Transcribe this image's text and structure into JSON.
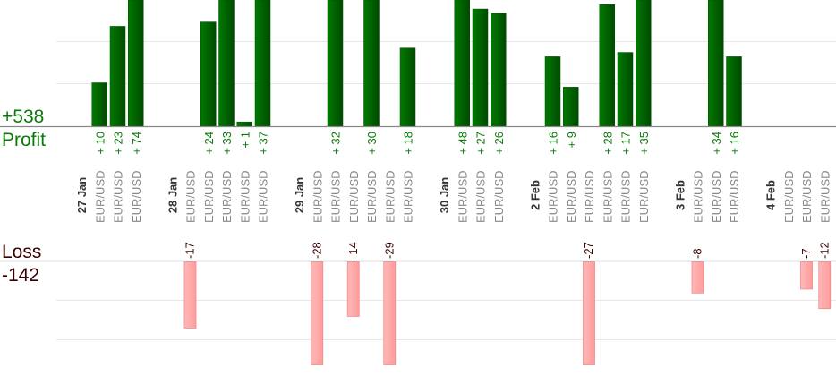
{
  "summary": {
    "profit_total": "+538",
    "profit_label": "Profit",
    "loss_label": "Loss",
    "loss_total": "-142"
  },
  "colors": {
    "profit": "#006400",
    "profit_text": "#0a7a0a",
    "loss_fill": "#ffaaaa",
    "loss_text": "#3a0000",
    "pair_text": "#888888"
  },
  "chart_data": {
    "type": "bar",
    "grid": true,
    "groups": [
      {
        "date": "27 Jan",
        "trades": [
          {
            "pair": "EUR/USD",
            "value": 10,
            "label": "+10"
          },
          {
            "pair": "EUR/USD",
            "value": 23,
            "label": "+23"
          },
          {
            "pair": "EUR/USD",
            "value": 74,
            "label": "+74"
          }
        ]
      },
      {
        "date": "28 Jan",
        "trades": [
          {
            "pair": "EUR/USD",
            "value": -17,
            "label": "-17"
          },
          {
            "pair": "EUR/USD",
            "value": 24,
            "label": "+24"
          },
          {
            "pair": "EUR/USD",
            "value": 33,
            "label": "+33"
          },
          {
            "pair": "EUR/USD",
            "value": 1,
            "label": "+1"
          },
          {
            "pair": "EUR/USD",
            "value": 37,
            "label": "+37"
          }
        ]
      },
      {
        "date": "29 Jan",
        "trades": [
          {
            "pair": "EUR/USD",
            "value": -28,
            "label": "-28"
          },
          {
            "pair": "EUR/USD",
            "value": 32,
            "label": "+32"
          },
          {
            "pair": "EUR/USD",
            "value": -14,
            "label": "-14"
          },
          {
            "pair": "EUR/USD",
            "value": 30,
            "label": "+30"
          },
          {
            "pair": "EUR/USD",
            "value": -29,
            "label": "-29"
          },
          {
            "pair": "EUR/USD",
            "value": 18,
            "label": "+18"
          }
        ]
      },
      {
        "date": "30 Jan",
        "trades": [
          {
            "pair": "EUR/USD",
            "value": 48,
            "label": "+48"
          },
          {
            "pair": "EUR/USD",
            "value": 27,
            "label": "+27"
          },
          {
            "pair": "EUR/USD",
            "value": 26,
            "label": "+26"
          }
        ]
      },
      {
        "date": "2 Feb",
        "trades": [
          {
            "pair": "EUR/USD",
            "value": 16,
            "label": "+16"
          },
          {
            "pair": "EUR/USD",
            "value": 9,
            "label": "+9"
          },
          {
            "pair": "EUR/USD",
            "value": -27,
            "label": "-27"
          },
          {
            "pair": "EUR/USD",
            "value": 28,
            "label": "+28"
          },
          {
            "pair": "EUR/USD",
            "value": 17,
            "label": "+17"
          },
          {
            "pair": "EUR/USD",
            "value": 35,
            "label": "+35"
          }
        ]
      },
      {
        "date": "3 Feb",
        "trades": [
          {
            "pair": "EUR/USD",
            "value": -8,
            "label": "-8"
          },
          {
            "pair": "EUR/USD",
            "value": 34,
            "label": "+34"
          },
          {
            "pair": "EUR/USD",
            "value": 16,
            "label": "+16"
          }
        ]
      },
      {
        "date": "4 Feb",
        "trades": [
          {
            "pair": "EUR/USD",
            "value": null,
            "label": ""
          },
          {
            "pair": "EUR/USD",
            "value": -7,
            "label": "-7"
          },
          {
            "pair": "EUR/USD",
            "value": -12,
            "label": "-12"
          }
        ]
      }
    ]
  }
}
